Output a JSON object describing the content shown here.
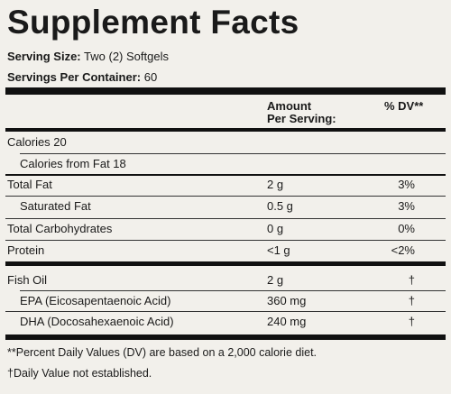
{
  "title": "Supplement Facts",
  "serving_size": {
    "label": "Serving Size:",
    "value": "Two (2) Softgels"
  },
  "servings_per_container": {
    "label": "Servings Per Container:",
    "value": "60"
  },
  "header": {
    "amount_line1": "Amount",
    "amount_line2": "Per Serving:",
    "dv": "% DV**"
  },
  "rows": [
    {
      "label": "Calories 20"
    },
    {
      "label": "Calories from Fat 18"
    },
    {
      "label": "Total Fat",
      "amount": "2 g",
      "dv": "3%"
    },
    {
      "label": "Saturated Fat",
      "amount": "0.5 g",
      "dv": "3%"
    },
    {
      "label": "Total Carbohydrates",
      "amount": "0 g",
      "dv": "0%"
    },
    {
      "label": "Protein",
      "amount": "<1 g",
      "dv": "<2%"
    },
    {
      "label": "Fish Oil",
      "amount": "2 g",
      "dv": "†"
    },
    {
      "label": "EPA (Eicosapentaenoic Acid)",
      "amount": "360 mg",
      "dv": "†"
    },
    {
      "label": "DHA (Docosahexaenoic Acid)",
      "amount": "240 mg",
      "dv": "†"
    }
  ],
  "footnotes": [
    "**Percent Daily Values (DV) are based on a 2,000 calorie diet.",
    "†Daily Value not established."
  ]
}
